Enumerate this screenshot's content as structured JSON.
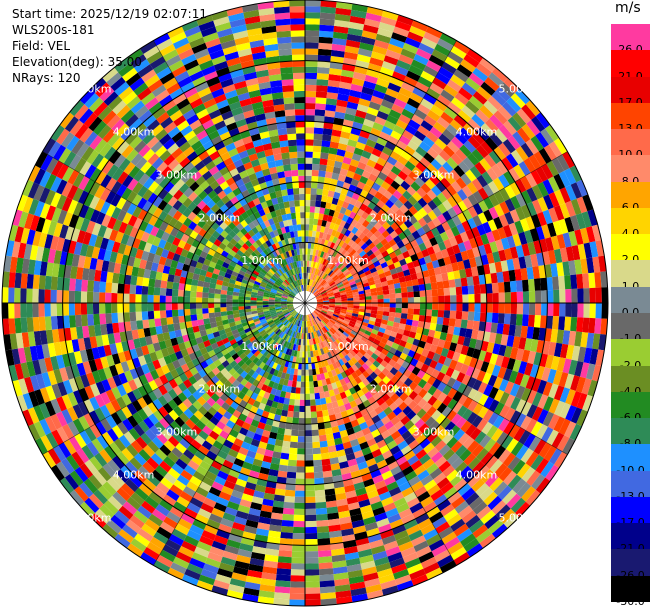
{
  "info": {
    "start_time": "Start time: 2025/12/19 02:07:11",
    "station": "WLS200s-181",
    "field": "Field: VEL",
    "elevation": "Elevation(deg): 35.00",
    "nrays": "NRays: 120"
  },
  "colorbar": {
    "unit": "m/s",
    "levels": [
      {
        "label": "26.0",
        "color": "#ff3aa0"
      },
      {
        "label": "21.0",
        "color": "#ff0000"
      },
      {
        "label": "17.0",
        "color": "#e80000"
      },
      {
        "label": "13.0",
        "color": "#ff4400"
      },
      {
        "label": "10.0",
        "color": "#ff6a4a"
      },
      {
        "label": "8.0",
        "color": "#ff8a6a"
      },
      {
        "label": "6.0",
        "color": "#ffa500"
      },
      {
        "label": "4.0",
        "color": "#ffd400"
      },
      {
        "label": "2.0",
        "color": "#ffff00"
      },
      {
        "label": "1.0",
        "color": "#d9d98a"
      },
      {
        "label": "0.0",
        "color": "#7a8a94"
      },
      {
        "label": "-1.0",
        "color": "#696969"
      },
      {
        "label": "-2.0",
        "color": "#9acd32"
      },
      {
        "label": "-4.0",
        "color": "#6b8e23"
      },
      {
        "label": "-6.0",
        "color": "#228b22"
      },
      {
        "label": "-8.0",
        "color": "#2e8b57"
      },
      {
        "label": "-10.0",
        "color": "#1e90ff"
      },
      {
        "label": "-13.0",
        "color": "#4169e1"
      },
      {
        "label": "-17.0",
        "color": "#0000ff"
      },
      {
        "label": "-21.0",
        "color": "#00008b"
      },
      {
        "label": "-26.0",
        "color": "#191970"
      },
      {
        "label": "-30.0",
        "color": "#000000"
      }
    ]
  },
  "chart_data": {
    "type": "heatmap",
    "subtype": "ppi-polar",
    "field": "VEL",
    "units": "m/s",
    "nrays": 120,
    "elevation_deg": 35.0,
    "range_rings_km": [
      1.0,
      2.0,
      3.0,
      4.0,
      5.0
    ],
    "ring_labels": [
      "1.00km",
      "2.00km",
      "3.00km",
      "4.00km",
      "5.00km"
    ],
    "max_range_km": 5.0,
    "note_pattern": "receding (positive) velocities east of center, approaching (negative) west of center; outer gates noisy"
  }
}
